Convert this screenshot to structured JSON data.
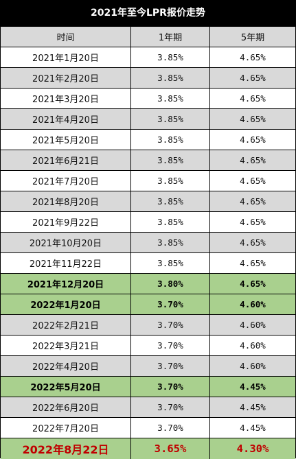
{
  "title": "2021年至今LPR报价走势",
  "headers": [
    "时间",
    "1年期",
    "5年期"
  ],
  "rows": [
    {
      "date": "2021年1月20日",
      "lpr1y": "3.85%",
      "lpr5y": "4.65%",
      "style": "white"
    },
    {
      "date": "2021年2月20日",
      "lpr1y": "3.85%",
      "lpr5y": "4.65%",
      "style": "zebra"
    },
    {
      "date": "2021年3月20日",
      "lpr1y": "3.85%",
      "lpr5y": "4.65%",
      "style": "white"
    },
    {
      "date": "2021年4月20日",
      "lpr1y": "3.85%",
      "lpr5y": "4.65%",
      "style": "zebra"
    },
    {
      "date": "2021年5月20日",
      "lpr1y": "3.85%",
      "lpr5y": "4.65%",
      "style": "white"
    },
    {
      "date": "2021年6月21日",
      "lpr1y": "3.85%",
      "lpr5y": "4.65%",
      "style": "zebra"
    },
    {
      "date": "2021年7月20日",
      "lpr1y": "3.85%",
      "lpr5y": "4.65%",
      "style": "white"
    },
    {
      "date": "2021年8月20日",
      "lpr1y": "3.85%",
      "lpr5y": "4.65%",
      "style": "zebra"
    },
    {
      "date": "2021年9月22日",
      "lpr1y": "3.85%",
      "lpr5y": "4.65%",
      "style": "white"
    },
    {
      "date": "2021年10月20日",
      "lpr1y": "3.85%",
      "lpr5y": "4.65%",
      "style": "zebra"
    },
    {
      "date": "2021年11月22日",
      "lpr1y": "3.85%",
      "lpr5y": "4.65%",
      "style": "white"
    },
    {
      "date": "2021年12月20日",
      "lpr1y": "3.80%",
      "lpr5y": "4.65%",
      "style": "green"
    },
    {
      "date": "2022年1月20日",
      "lpr1y": "3.70%",
      "lpr5y": "4.60%",
      "style": "green"
    },
    {
      "date": "2022年2月21日",
      "lpr1y": "3.70%",
      "lpr5y": "4.60%",
      "style": "zebra"
    },
    {
      "date": "2022年3月21日",
      "lpr1y": "3.70%",
      "lpr5y": "4.60%",
      "style": "white"
    },
    {
      "date": "2022年4月20日",
      "lpr1y": "3.70%",
      "lpr5y": "4.60%",
      "style": "zebra"
    },
    {
      "date": "2022年5月20日",
      "lpr1y": "3.70%",
      "lpr5y": "4.45%",
      "style": "green"
    },
    {
      "date": "2022年6月20日",
      "lpr1y": "3.70%",
      "lpr5y": "4.45%",
      "style": "zebra"
    },
    {
      "date": "2022年7月20日",
      "lpr1y": "3.70%",
      "lpr5y": "4.45%",
      "style": "white"
    },
    {
      "date": "2022年8月22日",
      "lpr1y": "3.65%",
      "lpr5y": "4.30%",
      "style": "final"
    }
  ],
  "colors": {
    "title_bg": "#000000",
    "header_bg": "#d9d9d9",
    "zebra_bg": "#d9d9d9",
    "highlight_bg": "#a9d08e",
    "final_text": "#c00000"
  }
}
